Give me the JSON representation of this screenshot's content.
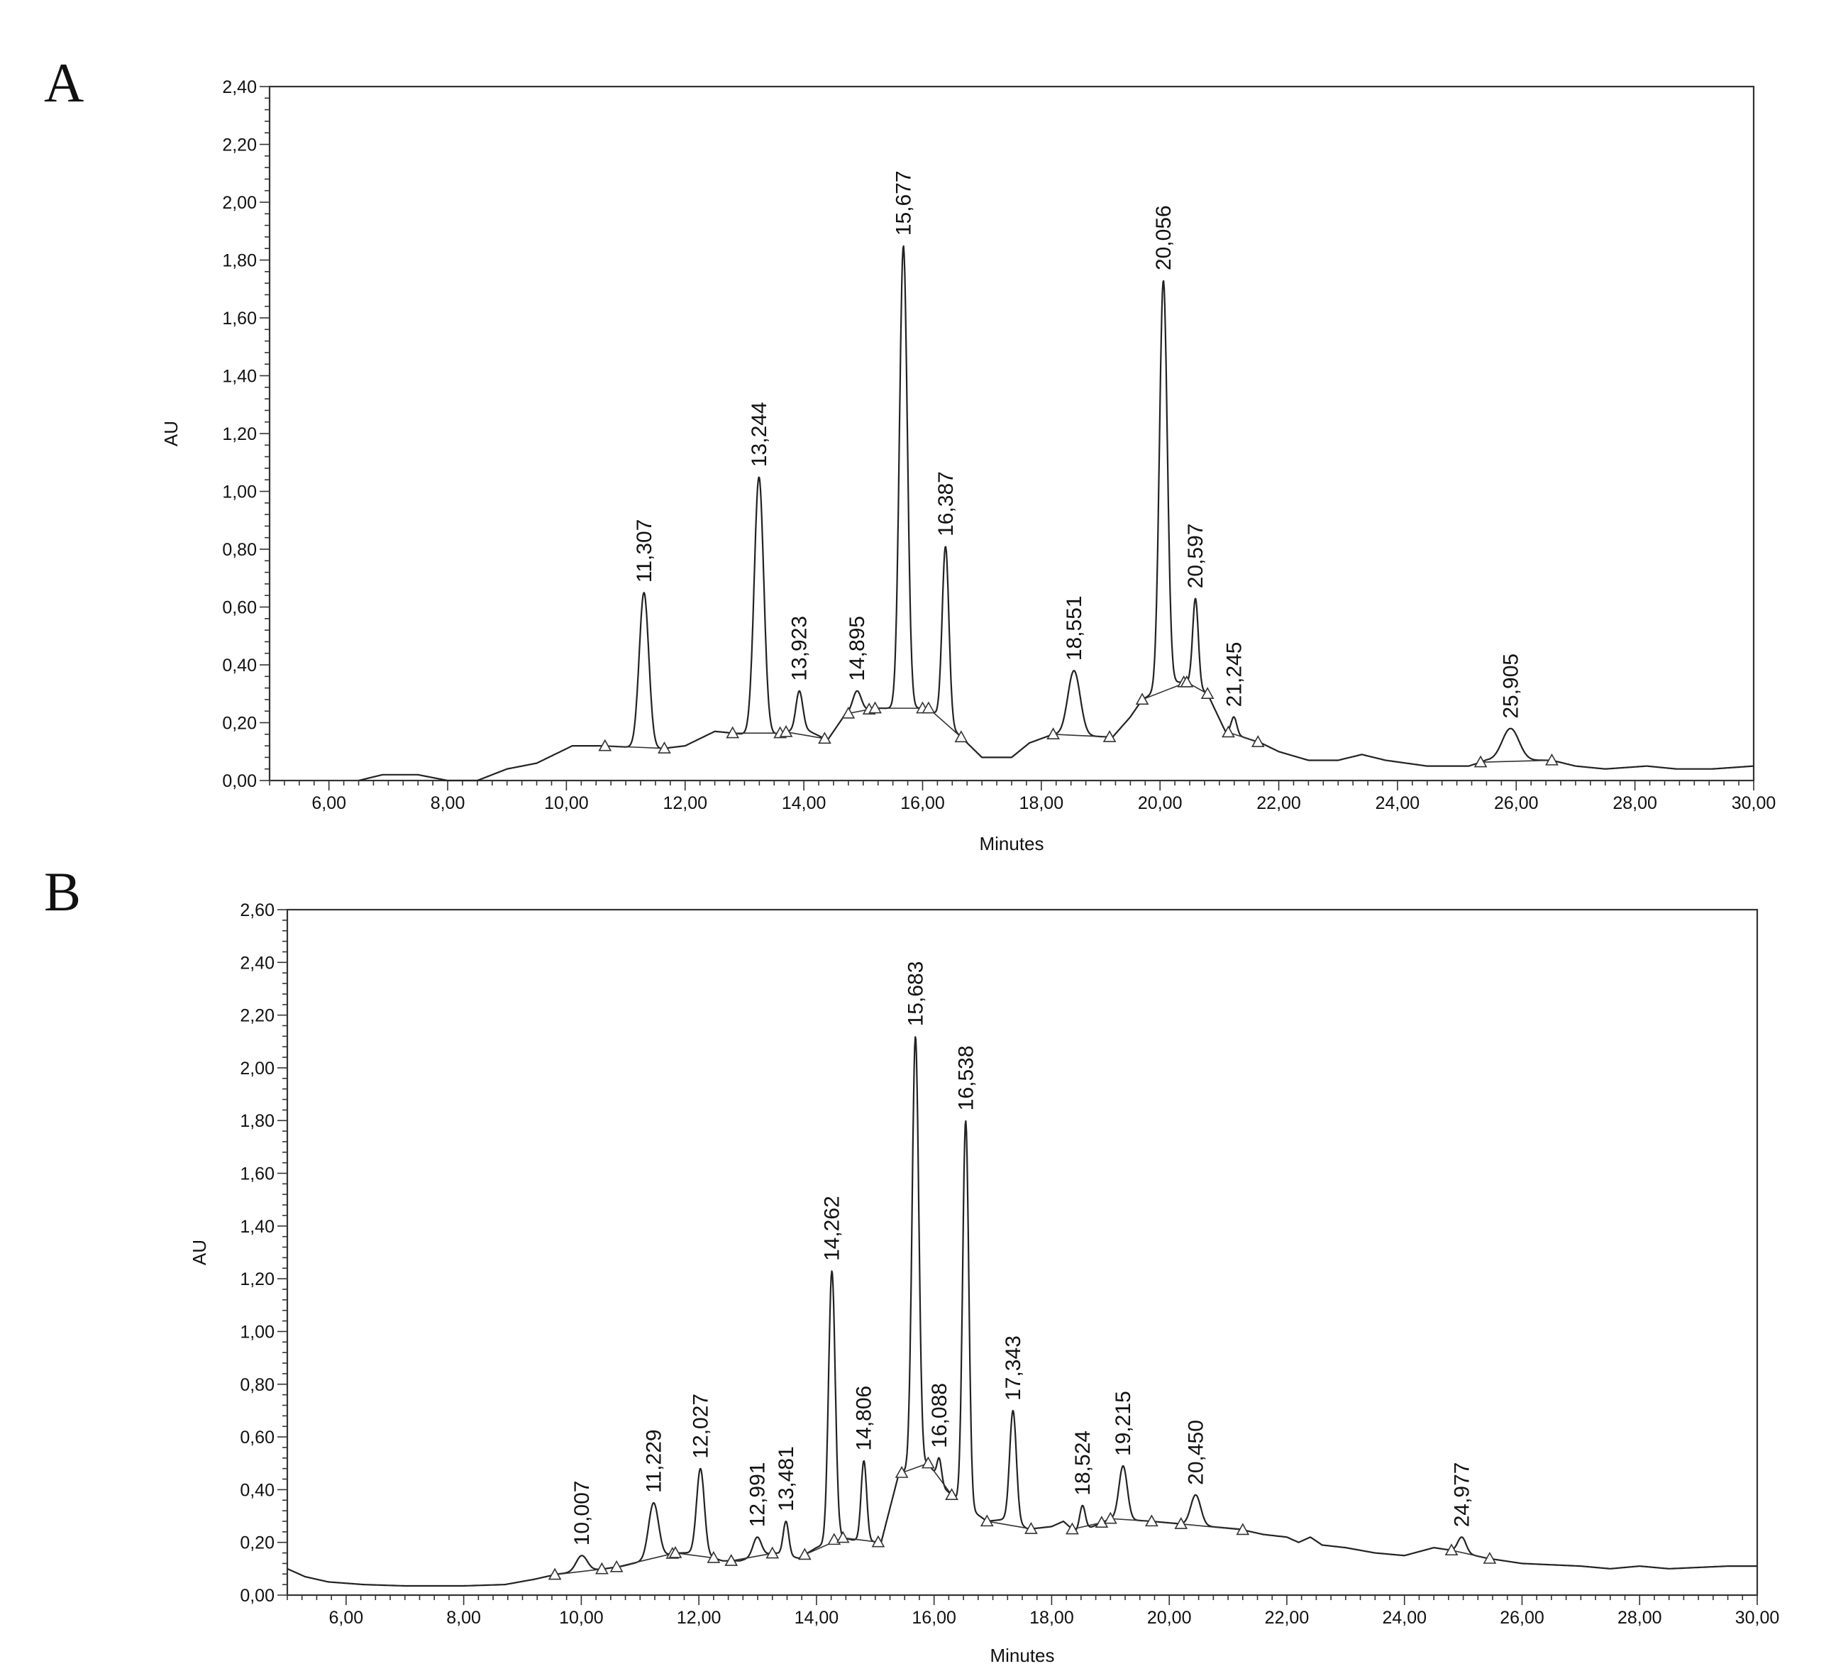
{
  "panels": {
    "a_label": "A",
    "b_label": "B"
  },
  "chart_data": [
    {
      "type": "line",
      "panel": "A",
      "xlabel": "Minutes",
      "ylabel": "AU",
      "xlim": [
        5.0,
        30.0
      ],
      "ylim": [
        0.0,
        2.4
      ],
      "x_ticks": [
        "6,00",
        "8,00",
        "10,00",
        "12,00",
        "14,00",
        "16,00",
        "18,00",
        "20,00",
        "22,00",
        "24,00",
        "26,00",
        "28,00",
        "30,00"
      ],
      "x_tick_values": [
        6,
        8,
        10,
        12,
        14,
        16,
        18,
        20,
        22,
        24,
        26,
        28,
        30
      ],
      "y_ticks": [
        "0,00",
        "0,20",
        "0,40",
        "0,60",
        "0,80",
        "1,00",
        "1,20",
        "1,40",
        "1,60",
        "1,80",
        "2,00",
        "2,20",
        "2,40"
      ],
      "y_tick_values": [
        0,
        0.2,
        0.4,
        0.6,
        0.8,
        1.0,
        1.2,
        1.4,
        1.6,
        1.8,
        2.0,
        2.2,
        2.4
      ],
      "baseline": [
        [
          6.5,
          0.0
        ],
        [
          6.9,
          0.02
        ],
        [
          7.5,
          0.02
        ],
        [
          8.0,
          0.0
        ],
        [
          8.5,
          0.0
        ],
        [
          9.0,
          0.04
        ],
        [
          9.5,
          0.06
        ],
        [
          10.1,
          0.12
        ],
        [
          10.6,
          0.12
        ],
        [
          11.6,
          0.11
        ],
        [
          12.0,
          0.12
        ],
        [
          12.5,
          0.17
        ],
        [
          13.0,
          0.16
        ],
        [
          13.5,
          0.16
        ],
        [
          14.0,
          0.18
        ],
        [
          14.4,
          0.14
        ],
        [
          14.7,
          0.23
        ],
        [
          15.2,
          0.25
        ],
        [
          16.1,
          0.25
        ],
        [
          16.4,
          0.2
        ],
        [
          16.7,
          0.14
        ],
        [
          17.0,
          0.08
        ],
        [
          17.5,
          0.08
        ],
        [
          17.8,
          0.13
        ],
        [
          18.2,
          0.16
        ],
        [
          19.2,
          0.15
        ],
        [
          19.5,
          0.22
        ],
        [
          19.7,
          0.28
        ],
        [
          20.2,
          0.34
        ],
        [
          20.5,
          0.34
        ],
        [
          20.8,
          0.3
        ],
        [
          21.1,
          0.17
        ],
        [
          21.4,
          0.15
        ],
        [
          21.7,
          0.13
        ],
        [
          22.0,
          0.1
        ],
        [
          22.5,
          0.07
        ],
        [
          23.0,
          0.07
        ],
        [
          23.4,
          0.09
        ],
        [
          23.8,
          0.07
        ],
        [
          24.5,
          0.05
        ],
        [
          25.2,
          0.05
        ],
        [
          25.5,
          0.07
        ],
        [
          26.6,
          0.07
        ],
        [
          27.0,
          0.05
        ],
        [
          27.5,
          0.04
        ],
        [
          28.2,
          0.05
        ],
        [
          28.7,
          0.04
        ],
        [
          29.3,
          0.04
        ],
        [
          30.0,
          0.05
        ]
      ],
      "peaks": [
        {
          "rt": 11.307,
          "label": "11,307",
          "height": 0.65,
          "width": 0.17
        },
        {
          "rt": 13.244,
          "label": "13,244",
          "height": 1.05,
          "width": 0.17
        },
        {
          "rt": 13.923,
          "label": "13,923",
          "height": 0.31,
          "width": 0.12
        },
        {
          "rt": 14.895,
          "label": "14,895",
          "height": 0.31,
          "width": 0.15
        },
        {
          "rt": 15.677,
          "label": "15,677",
          "height": 1.85,
          "width": 0.14
        },
        {
          "rt": 16.387,
          "label": "16,387",
          "height": 0.81,
          "width": 0.12
        },
        {
          "rt": 18.551,
          "label": "18,551",
          "height": 0.38,
          "width": 0.22
        },
        {
          "rt": 20.056,
          "label": "20,056",
          "height": 1.73,
          "width": 0.14
        },
        {
          "rt": 20.597,
          "label": "20,597",
          "height": 0.63,
          "width": 0.1
        },
        {
          "rt": 21.245,
          "label": "21,245",
          "height": 0.22,
          "width": 0.1
        },
        {
          "rt": 25.905,
          "label": "25,905",
          "height": 0.18,
          "width": 0.3
        }
      ],
      "integration_markers": [
        10.65,
        11.65,
        12.8,
        13.6,
        13.7,
        14.35,
        14.75,
        15.1,
        15.2,
        16.0,
        16.1,
        16.65,
        18.2,
        19.15,
        19.7,
        20.4,
        20.45,
        20.8,
        21.15,
        21.65,
        25.4,
        26.6
      ],
      "integration_baselines": [
        [
          [
            10.65,
            11.65
          ]
        ],
        [
          [
            12.8,
            13.6
          ],
          [
            13.7,
            14.35
          ]
        ],
        [
          [
            14.75,
            15.2
          ],
          [
            15.2,
            16.1
          ],
          [
            16.1,
            16.65
          ]
        ],
        [
          [
            18.2,
            19.15
          ]
        ],
        [
          [
            19.7,
            20.45
          ],
          [
            20.45,
            20.8
          ],
          [
            21.15,
            21.65
          ]
        ],
        [
          [
            25.4,
            26.6
          ]
        ]
      ]
    },
    {
      "type": "line",
      "panel": "B",
      "xlabel": "Minutes",
      "ylabel": "AU",
      "xlim": [
        5.0,
        30.0
      ],
      "ylim": [
        0.0,
        2.6
      ],
      "x_ticks": [
        "6,00",
        "8,00",
        "10,00",
        "12,00",
        "14,00",
        "16,00",
        "18,00",
        "20,00",
        "22,00",
        "24,00",
        "26,00",
        "28,00",
        "30,00"
      ],
      "x_tick_values": [
        6,
        8,
        10,
        12,
        14,
        16,
        18,
        20,
        22,
        24,
        26,
        28,
        30
      ],
      "y_ticks": [
        "0,00",
        "0,20",
        "0,40",
        "0,60",
        "0,80",
        "1,00",
        "1,20",
        "1,40",
        "1,60",
        "1,80",
        "2,00",
        "2,20",
        "2,40",
        "2,60"
      ],
      "y_tick_values": [
        0,
        0.2,
        0.4,
        0.6,
        0.8,
        1.0,
        1.2,
        1.4,
        1.6,
        1.8,
        2.0,
        2.2,
        2.4,
        2.6
      ],
      "baseline": [
        [
          5.0,
          0.1
        ],
        [
          5.3,
          0.07
        ],
        [
          5.7,
          0.05
        ],
        [
          6.3,
          0.04
        ],
        [
          7.0,
          0.035
        ],
        [
          8.0,
          0.035
        ],
        [
          8.7,
          0.04
        ],
        [
          9.2,
          0.06
        ],
        [
          9.6,
          0.08
        ],
        [
          10.4,
          0.1
        ],
        [
          10.7,
          0.11
        ],
        [
          11.6,
          0.16
        ],
        [
          12.0,
          0.16
        ],
        [
          12.4,
          0.13
        ],
        [
          12.7,
          0.13
        ],
        [
          13.0,
          0.15
        ],
        [
          13.3,
          0.16
        ],
        [
          13.7,
          0.14
        ],
        [
          14.0,
          0.18
        ],
        [
          14.4,
          0.22
        ],
        [
          14.6,
          0.21
        ],
        [
          15.1,
          0.2
        ],
        [
          15.4,
          0.46
        ],
        [
          15.9,
          0.5
        ],
        [
          16.2,
          0.4
        ],
        [
          16.4,
          0.36
        ],
        [
          16.9,
          0.28
        ],
        [
          17.3,
          0.29
        ],
        [
          17.6,
          0.25
        ],
        [
          18.0,
          0.26
        ],
        [
          18.2,
          0.28
        ],
        [
          18.4,
          0.24
        ],
        [
          18.7,
          0.26
        ],
        [
          19.0,
          0.29
        ],
        [
          19.7,
          0.28
        ],
        [
          20.2,
          0.27
        ],
        [
          21.2,
          0.25
        ],
        [
          21.6,
          0.23
        ],
        [
          22.0,
          0.22
        ],
        [
          22.2,
          0.2
        ],
        [
          22.4,
          0.22
        ],
        [
          22.6,
          0.19
        ],
        [
          23.0,
          0.18
        ],
        [
          23.5,
          0.16
        ],
        [
          24.0,
          0.15
        ],
        [
          24.5,
          0.18
        ],
        [
          24.8,
          0.17
        ],
        [
          25.4,
          0.14
        ],
        [
          26.0,
          0.12
        ],
        [
          27.0,
          0.11
        ],
        [
          27.5,
          0.1
        ],
        [
          28.0,
          0.11
        ],
        [
          28.5,
          0.1
        ],
        [
          29.5,
          0.11
        ],
        [
          30.0,
          0.11
        ]
      ],
      "peaks": [
        {
          "rt": 10.007,
          "label": "10,007",
          "height": 0.15,
          "width": 0.2
        },
        {
          "rt": 11.229,
          "label": "11,229",
          "height": 0.35,
          "width": 0.18
        },
        {
          "rt": 12.027,
          "label": "12,027",
          "height": 0.48,
          "width": 0.14
        },
        {
          "rt": 12.991,
          "label": "12,991",
          "height": 0.22,
          "width": 0.15
        },
        {
          "rt": 13.481,
          "label": "13,481",
          "height": 0.28,
          "width": 0.1
        },
        {
          "rt": 14.262,
          "label": "14,262",
          "height": 1.23,
          "width": 0.12
        },
        {
          "rt": 14.806,
          "label": "14,806",
          "height": 0.51,
          "width": 0.1
        },
        {
          "rt": 15.683,
          "label": "15,683",
          "height": 2.12,
          "width": 0.12
        },
        {
          "rt": 16.088,
          "label": "16,088",
          "height": 0.52,
          "width": 0.08
        },
        {
          "rt": 16.538,
          "label": "16,538",
          "height": 1.8,
          "width": 0.11
        },
        {
          "rt": 17.343,
          "label": "17,343",
          "height": 0.7,
          "width": 0.12
        },
        {
          "rt": 18.524,
          "label": "18,524",
          "height": 0.34,
          "width": 0.1
        },
        {
          "rt": 19.215,
          "label": "19,215",
          "height": 0.49,
          "width": 0.15
        },
        {
          "rt": 20.45,
          "label": "20,450",
          "height": 0.38,
          "width": 0.18
        },
        {
          "rt": 24.977,
          "label": "24,977",
          "height": 0.22,
          "width": 0.15
        }
      ],
      "integration_markers": [
        9.55,
        10.35,
        10.6,
        11.55,
        11.6,
        12.25,
        12.55,
        13.25,
        13.8,
        14.3,
        14.45,
        15.05,
        15.45,
        15.9,
        16.3,
        16.9,
        17.65,
        18.35,
        18.85,
        19.0,
        19.7,
        20.2,
        21.25,
        24.8,
        25.45
      ],
      "integration_baselines": [
        [
          [
            9.55,
            10.35
          ]
        ],
        [
          [
            10.6,
            11.55
          ],
          [
            11.6,
            12.25
          ]
        ],
        [
          [
            12.55,
            13.25
          ],
          [
            13.8,
            14.45
          ]
        ],
        [
          [
            14.45,
            15.05
          ]
        ],
        [
          [
            15.45,
            15.9
          ],
          [
            15.9,
            16.3
          ],
          [
            16.9,
            17.65
          ]
        ],
        [
          [
            18.35,
            18.85
          ],
          [
            19.0,
            19.7
          ],
          [
            20.2,
            21.25
          ]
        ],
        [
          [
            24.8,
            25.45
          ]
        ]
      ]
    }
  ]
}
